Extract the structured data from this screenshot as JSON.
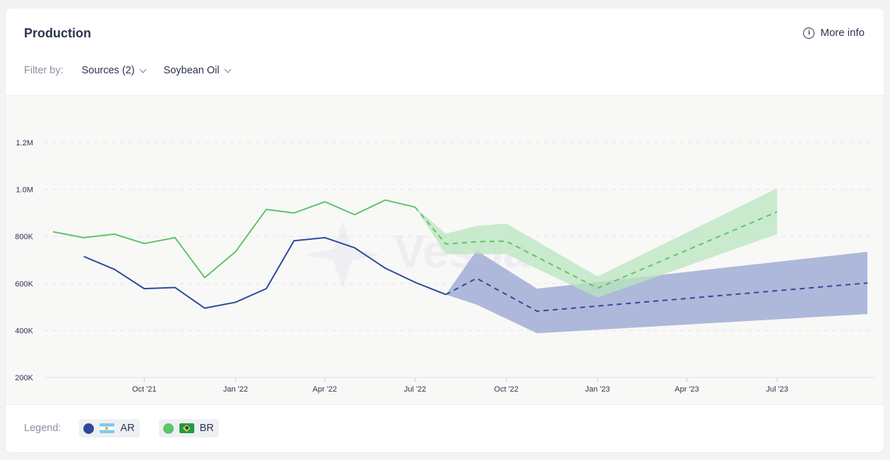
{
  "header": {
    "title": "Production",
    "more_info_label": "More info",
    "info_icon": "info-circle-icon"
  },
  "filters": {
    "label": "Filter by:",
    "sources_label": "Sources (2)",
    "product_label": "Soybean Oil"
  },
  "legend": {
    "label": "Legend:",
    "items": [
      {
        "code": "AR",
        "color": "#2d4a9a",
        "flag_icon": "argentina-flag-icon"
      },
      {
        "code": "BR",
        "color": "#5ec46a",
        "flag_icon": "brazil-flag-icon"
      }
    ]
  },
  "watermark": {
    "text": "Vespa",
    "icon": "vespa-logo-icon"
  },
  "chart_data": {
    "type": "line",
    "y_axis": {
      "min": 200000,
      "max": 1300000,
      "ticks": [
        200000,
        400000,
        600000,
        800000,
        1000000,
        1200000
      ],
      "tick_labels": [
        "200K",
        "400K",
        "600K",
        "800K",
        "1.0M",
        "1.2M"
      ]
    },
    "x_axis": {
      "start": "2021-07-01",
      "end": "2023-09-30",
      "ticks": [
        "2021-10-01",
        "2022-01-01",
        "2022-04-01",
        "2022-07-01",
        "2022-10-01",
        "2023-01-01",
        "2023-04-01",
        "2023-07-01"
      ],
      "tick_labels": [
        "Oct '21",
        "Jan '22",
        "Apr '22",
        "Jul '22",
        "Oct '22",
        "Jan '23",
        "Apr '23",
        "Jul '23"
      ]
    },
    "grid": true,
    "series": [
      {
        "name": "BR",
        "color": "#5ec46a",
        "band_color": "#b9e5bd",
        "actual": [
          {
            "x": "2021-07-01",
            "y": 820000
          },
          {
            "x": "2021-08-01",
            "y": 795000
          },
          {
            "x": "2021-09-01",
            "y": 810000
          },
          {
            "x": "2021-10-01",
            "y": 770000
          },
          {
            "x": "2021-11-01",
            "y": 795000
          },
          {
            "x": "2021-12-01",
            "y": 625000
          },
          {
            "x": "2022-01-01",
            "y": 735000
          },
          {
            "x": "2022-02-01",
            "y": 915000
          },
          {
            "x": "2022-03-01",
            "y": 900000
          },
          {
            "x": "2022-04-01",
            "y": 948000
          },
          {
            "x": "2022-05-01",
            "y": 893000
          },
          {
            "x": "2022-06-01",
            "y": 955000
          },
          {
            "x": "2022-07-01",
            "y": 925000
          }
        ],
        "forecast": [
          {
            "x": "2022-07-01",
            "y": 925000,
            "low": 925000,
            "high": 925000
          },
          {
            "x": "2022-08-01",
            "y": 768000,
            "low": 725000,
            "high": 812000
          },
          {
            "x": "2022-09-01",
            "y": 778000,
            "low": 725000,
            "high": 845000
          },
          {
            "x": "2022-10-01",
            "y": 780000,
            "low": 725000,
            "high": 855000
          },
          {
            "x": "2023-01-01",
            "y": 580000,
            "low": 540000,
            "high": 630000
          },
          {
            "x": "2023-07-01",
            "y": 905000,
            "low": 810000,
            "high": 1005000
          }
        ]
      },
      {
        "name": "AR",
        "color": "#2d4a9a",
        "band_color": "#aab4d8",
        "actual": [
          {
            "x": "2021-08-01",
            "y": 715000
          },
          {
            "x": "2021-09-01",
            "y": 660000
          },
          {
            "x": "2021-10-01",
            "y": 578000
          },
          {
            "x": "2021-11-01",
            "y": 583000
          },
          {
            "x": "2021-12-01",
            "y": 495000
          },
          {
            "x": "2022-01-01",
            "y": 520000
          },
          {
            "x": "2022-02-01",
            "y": 578000
          },
          {
            "x": "2022-03-01",
            "y": 782000
          },
          {
            "x": "2022-04-01",
            "y": 795000
          },
          {
            "x": "2022-05-01",
            "y": 752000
          },
          {
            "x": "2022-06-01",
            "y": 665000
          },
          {
            "x": "2022-07-01",
            "y": 605000
          },
          {
            "x": "2022-08-01",
            "y": 553000
          }
        ],
        "forecast": [
          {
            "x": "2022-08-01",
            "y": 553000,
            "low": 553000,
            "high": 553000
          },
          {
            "x": "2022-09-01",
            "y": 622000,
            "low": 510000,
            "high": 740000
          },
          {
            "x": "2022-11-01",
            "y": 482000,
            "low": 388000,
            "high": 578000
          },
          {
            "x": "2023-09-30",
            "y": 602000,
            "low": 470000,
            "high": 735000
          }
        ]
      }
    ]
  }
}
